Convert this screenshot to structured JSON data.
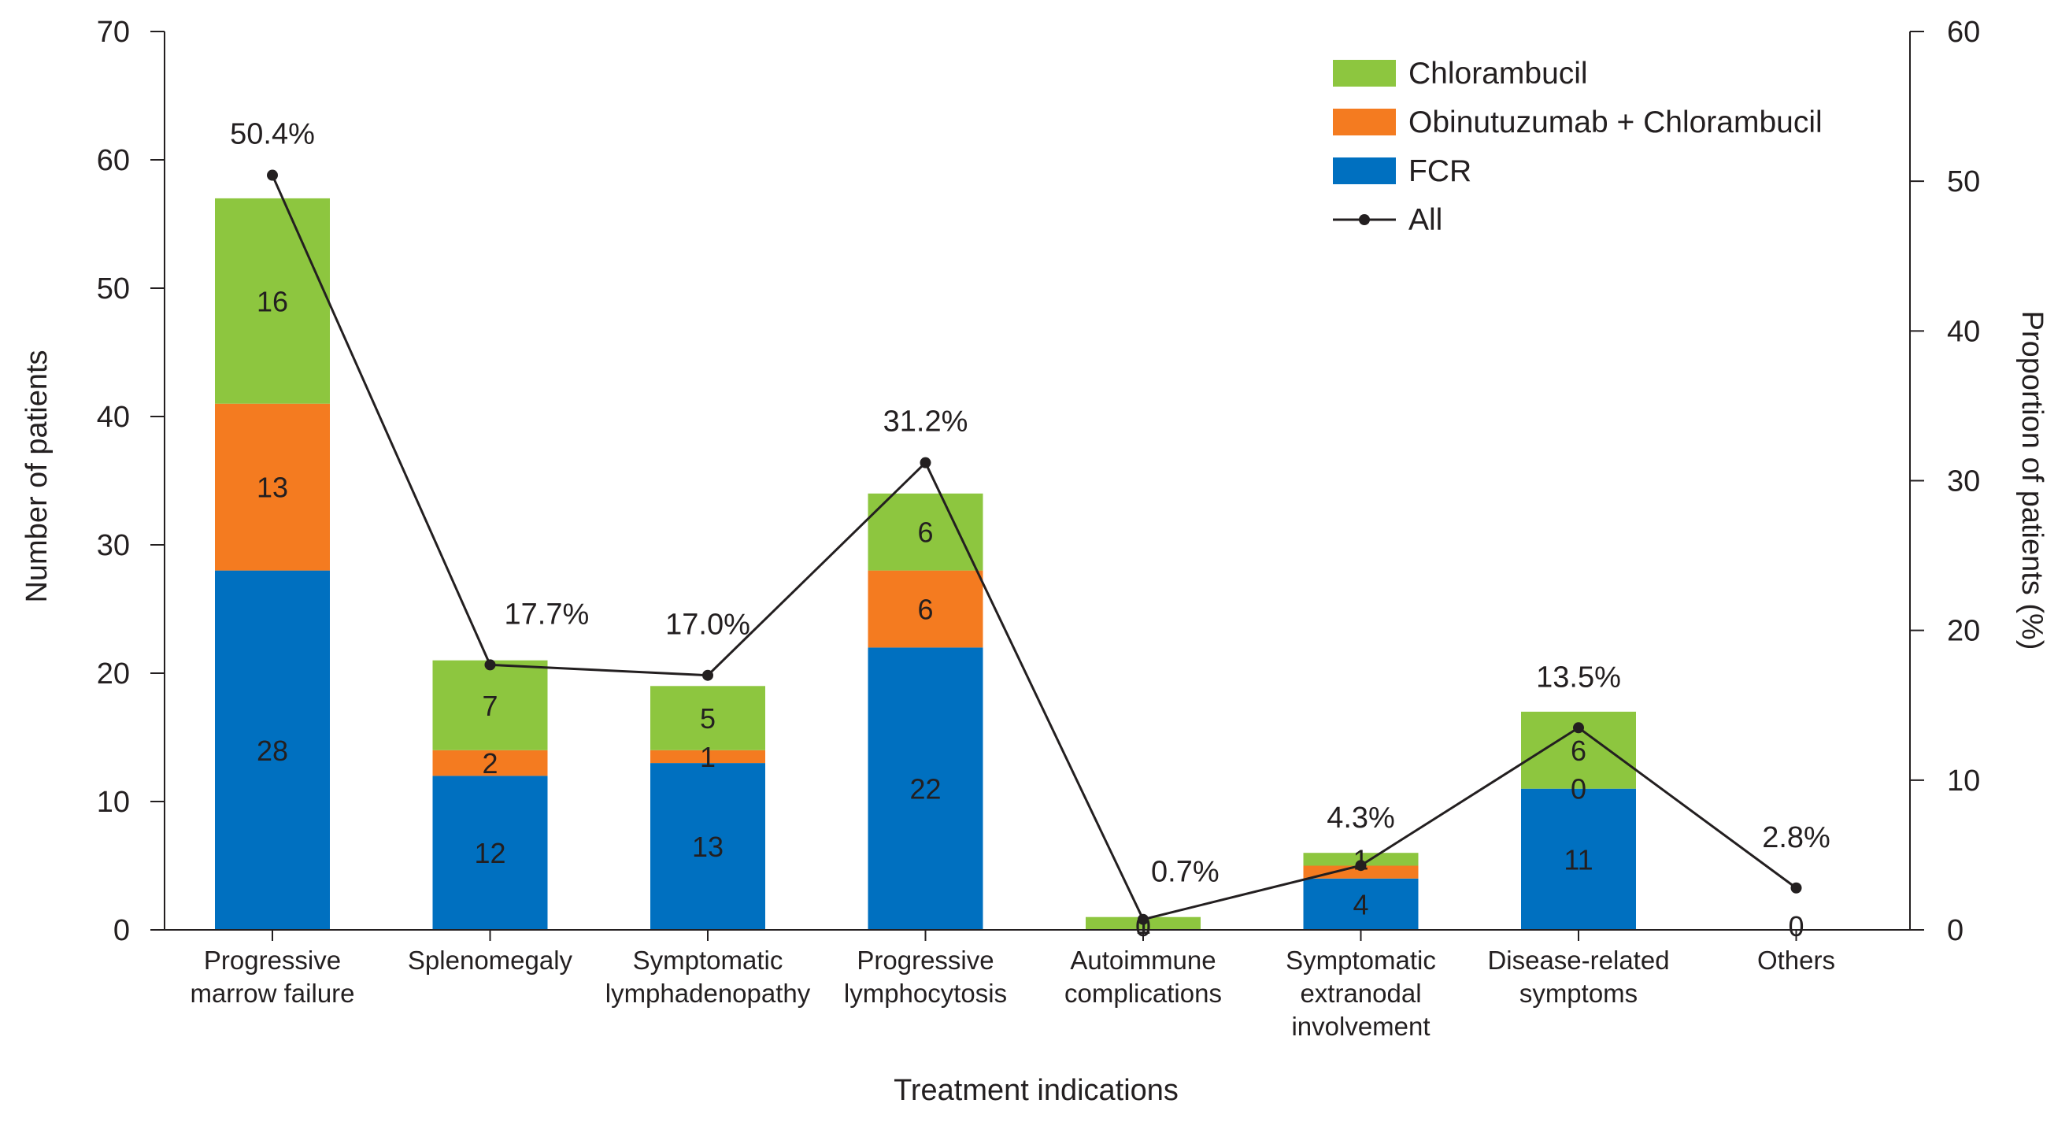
{
  "chart_data": {
    "type": "bar",
    "stacked": true,
    "categories": [
      [
        "Progressive",
        "marrow failure"
      ],
      [
        "Splenomegaly"
      ],
      [
        "Symptomatic",
        "lymphadenopathy"
      ],
      [
        "Progressive",
        "lymphocytosis"
      ],
      [
        "Autoimmune",
        "complications"
      ],
      [
        "Symptomatic",
        "extranodal",
        "involvement"
      ],
      [
        "Disease-related",
        "symptoms"
      ],
      [
        "Others"
      ]
    ],
    "series": [
      {
        "name": "FCR",
        "color": "#0070c0",
        "label_color": "#ffffff",
        "values": [
          28,
          12,
          13,
          22,
          0,
          4,
          11,
          0
        ],
        "labels": [
          "28",
          "12",
          "13",
          "22",
          "0",
          "4",
          "11",
          "0"
        ]
      },
      {
        "name": "Obinutuzumab + Chlorambucil",
        "color": "#f47b20",
        "label_color": "#231f20",
        "values": [
          13,
          2,
          1,
          6,
          0,
          1,
          0,
          0
        ],
        "labels": [
          "13",
          "2",
          "1",
          "6",
          "",
          "",
          "0",
          ""
        ]
      },
      {
        "name": "Chlorambucil",
        "color": "#8dc63f",
        "label_color": "#231f20",
        "values": [
          16,
          7,
          5,
          6,
          1,
          1,
          6,
          0
        ],
        "labels": [
          "16",
          "7",
          "5",
          "6",
          "1",
          "1",
          "6",
          ""
        ]
      }
    ],
    "line": {
      "name": "All",
      "axis": "right",
      "color": "#231f20",
      "values": [
        50.4,
        17.7,
        17.0,
        31.2,
        0.7,
        4.3,
        13.5,
        2.8
      ],
      "labels": [
        "50.4%",
        "17.7%",
        "17.0%",
        "31.2%",
        "0.7%",
        "4.3%",
        "13.5%",
        "2.8%"
      ]
    },
    "xlabel": "Treatment indications",
    "ylabel": "Number of patients",
    "y2label": "Proportion of patients (%)",
    "ylim": [
      0,
      70
    ],
    "yticks": [
      "0",
      "10",
      "20",
      "30",
      "40",
      "50",
      "60",
      "70"
    ],
    "y2lim": [
      0,
      60
    ],
    "y2ticks": [
      "0",
      "10",
      "20",
      "30",
      "40",
      "50",
      "60"
    ],
    "legend": {
      "position": "top-right",
      "items": [
        {
          "label": "Chlorambucil",
          "kind": "box",
          "color": "#8dc63f"
        },
        {
          "label": "Obinutuzumab + Chlorambucil",
          "kind": "box",
          "color": "#f47b20"
        },
        {
          "label": "FCR",
          "kind": "box",
          "color": "#0070c0"
        },
        {
          "label": "All",
          "kind": "line",
          "color": "#231f20"
        }
      ]
    }
  }
}
